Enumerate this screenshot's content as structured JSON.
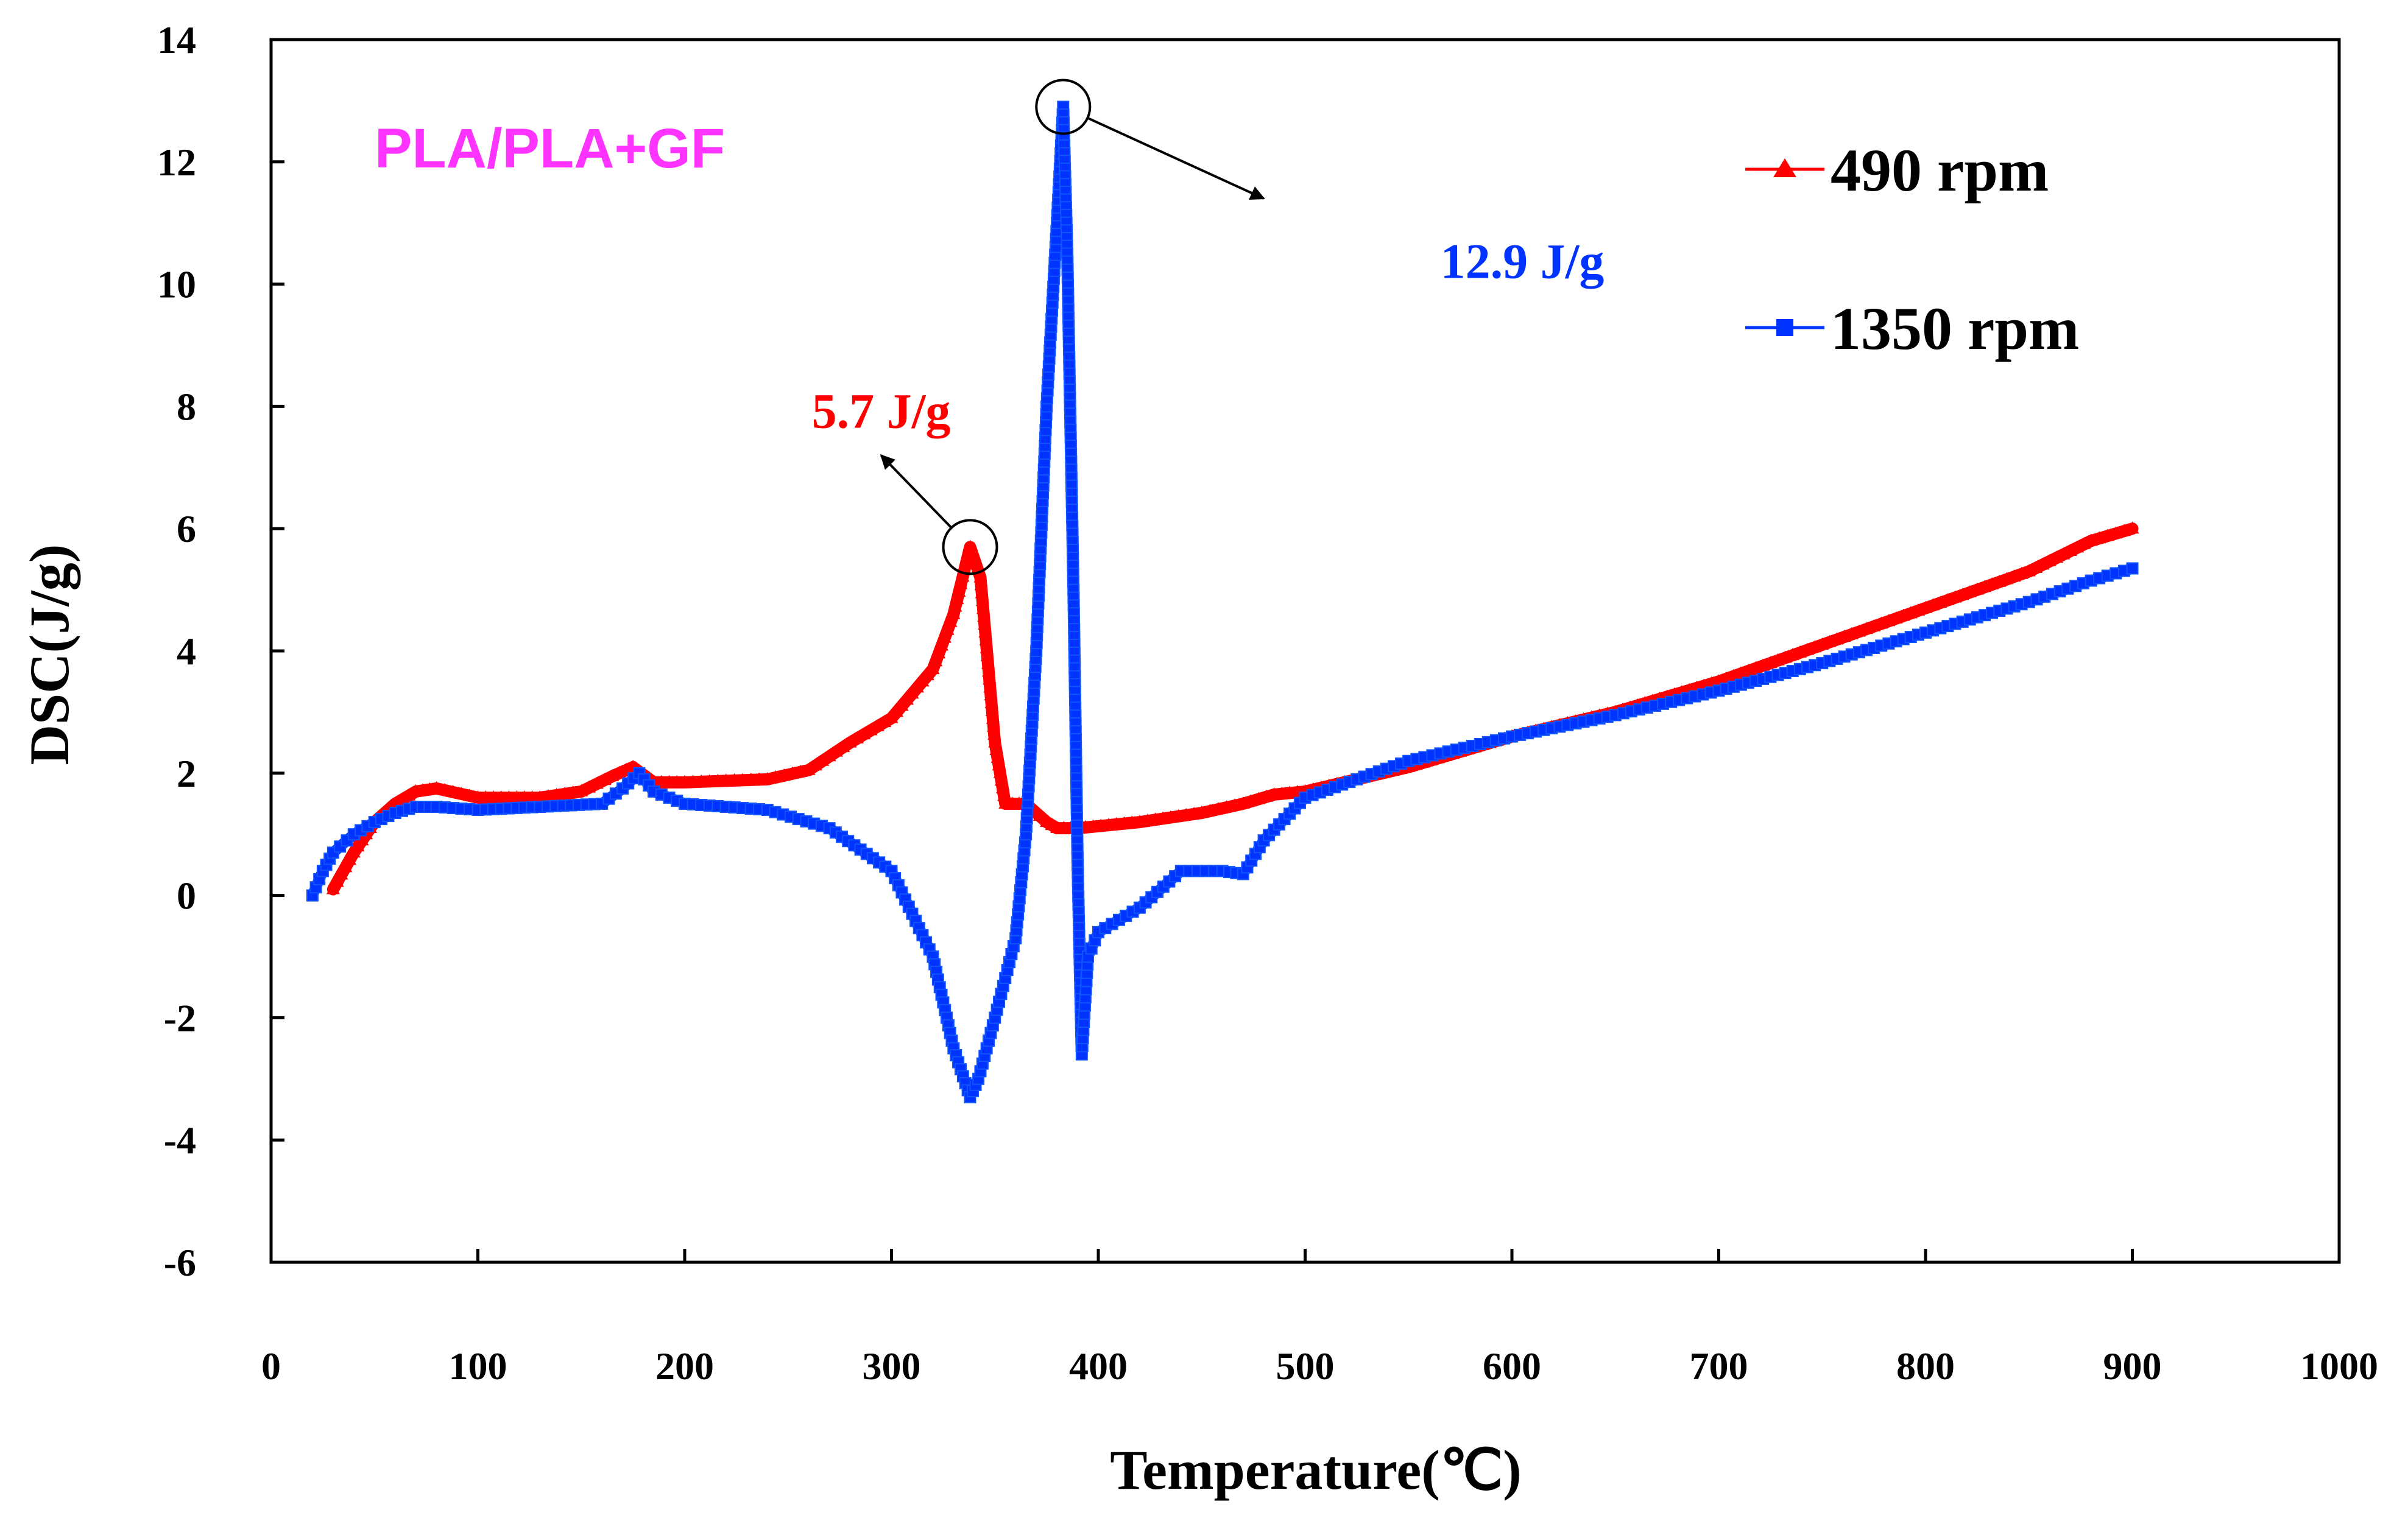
{
  "chart_data": {
    "type": "scatter",
    "title": "",
    "subtitle": "PLA/PLA+GF",
    "subtitle_color": "#ff33ff",
    "xlabel": "Temperature(℃)",
    "ylabel": "DSC(J/g)",
    "xlim": [
      0,
      1000
    ],
    "ylim": [
      -6,
      14
    ],
    "xticks": [
      0,
      100,
      200,
      300,
      400,
      500,
      600,
      700,
      800,
      900,
      1000
    ],
    "yticks": [
      -6,
      -4,
      -2,
      0,
      2,
      4,
      6,
      8,
      10,
      12,
      14
    ],
    "grid": false,
    "legend_position": "top-right",
    "series": [
      {
        "name": "490 rpm",
        "color": "#ff0000",
        "marker": "triangle",
        "x": [
          30,
          40,
          50,
          60,
          70,
          80,
          100,
          130,
          150,
          165,
          175,
          185,
          200,
          240,
          260,
          280,
          300,
          320,
          330,
          338,
          343,
          350,
          355,
          365,
          375,
          380,
          390,
          420,
          450,
          470,
          485,
          500,
          550,
          600,
          650,
          700,
          750,
          800,
          850,
          880,
          900
        ],
        "values": [
          0.1,
          0.7,
          1.2,
          1.5,
          1.7,
          1.75,
          1.6,
          1.6,
          1.7,
          1.95,
          2.1,
          1.85,
          1.85,
          1.9,
          2.05,
          2.5,
          2.9,
          3.7,
          4.6,
          5.7,
          5.2,
          2.5,
          1.5,
          1.5,
          1.2,
          1.1,
          1.1,
          1.2,
          1.35,
          1.5,
          1.65,
          1.7,
          2.1,
          2.6,
          3.0,
          3.5,
          4.1,
          4.7,
          5.3,
          5.8,
          6.0
        ]
      },
      {
        "name": "1350 rpm",
        "color": "#0033ff",
        "marker": "square",
        "x": [
          20,
          25,
          30,
          40,
          50,
          60,
          70,
          80,
          100,
          130,
          160,
          170,
          178,
          185,
          200,
          240,
          270,
          300,
          320,
          330,
          338,
          342,
          350,
          360,
          365,
          370,
          375,
          380,
          383,
          385,
          388,
          390,
          392,
          395,
          400,
          420,
          440,
          460,
          470,
          480,
          500,
          550,
          600,
          650,
          700,
          750,
          800,
          850,
          880,
          900
        ],
        "values": [
          0,
          0.4,
          0.7,
          1.0,
          1.2,
          1.35,
          1.45,
          1.45,
          1.4,
          1.45,
          1.5,
          1.75,
          2.0,
          1.7,
          1.5,
          1.4,
          1.1,
          0.4,
          -1.0,
          -2.5,
          -3.3,
          -3.0,
          -2.0,
          -0.7,
          1.0,
          4.0,
          8.0,
          11.0,
          12.9,
          10.5,
          5.0,
          0.5,
          -2.6,
          -1.0,
          -0.6,
          -0.2,
          0.4,
          0.4,
          0.35,
          0.9,
          1.6,
          2.2,
          2.6,
          2.95,
          3.35,
          3.8,
          4.3,
          4.8,
          5.15,
          5.35
        ]
      }
    ],
    "annotations": [
      {
        "text": "5.7 J/g",
        "x": 338,
        "y": 5.7,
        "color": "#ff0000",
        "label_x": 295,
        "label_y": 7.65,
        "arrow_to_x": 295,
        "arrow_to_y": 7.2
      },
      {
        "text": "12.9 J/g",
        "x": 383,
        "y": 12.9,
        "color": "#0033ff",
        "label_x": 605,
        "label_y": 10.1,
        "arrow_to_x": 480,
        "arrow_to_y": 11.4
      }
    ]
  }
}
